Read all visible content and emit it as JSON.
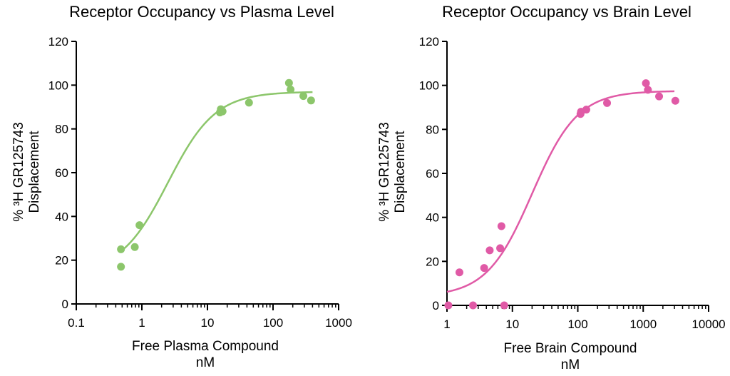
{
  "chart_data": [
    {
      "type": "scatter",
      "title": "Receptor Occupancy vs Plasma Level",
      "xlabel": [
        "Free Plasma Compound",
        "nM"
      ],
      "ylabel": [
        "% ³H GR125743",
        "Displacement"
      ],
      "xscale": "log",
      "xlim": [
        0.1,
        1000
      ],
      "ylim": [
        0,
        120
      ],
      "xticks": [
        0.1,
        1,
        10,
        100,
        1000
      ],
      "xtick_labels": [
        "0.1",
        "1",
        "10",
        "100",
        "1000"
      ],
      "yticks": [
        0,
        20,
        40,
        60,
        80,
        100,
        120
      ],
      "ytick_labels": [
        "0",
        "20",
        "40",
        "60",
        "80",
        "100",
        "120"
      ],
      "grid": false,
      "color": "#8cc66b",
      "series": [
        {
          "points": [
            [
              0.48,
              25
            ],
            [
              0.48,
              17
            ],
            [
              0.78,
              26
            ],
            [
              0.92,
              36
            ],
            [
              15.5,
              87.5
            ],
            [
              16,
              89
            ],
            [
              16.5,
              88
            ],
            [
              17,
              88
            ],
            [
              43,
              92
            ],
            [
              175,
              101
            ],
            [
              185,
              98
            ],
            [
              290,
              95
            ],
            [
              380,
              93
            ]
          ],
          "fit": {
            "bottom": 14,
            "top": 97,
            "ec50": 2.5,
            "hill": 1.2,
            "x_range": [
              0.48,
              400
            ]
          }
        }
      ]
    },
    {
      "type": "scatter",
      "title": "Receptor  Occupancy vs Brain Level",
      "xlabel": [
        "Free Brain Compound",
        "nM"
      ],
      "ylabel": [
        "% ³H GR125743",
        "Displacement"
      ],
      "xscale": "log",
      "xlim": [
        1,
        10000
      ],
      "ylim": [
        0,
        120
      ],
      "xticks": [
        1,
        10,
        100,
        1000,
        10000
      ],
      "xtick_labels": [
        "1",
        "10",
        "100",
        "1000",
        "10000"
      ],
      "yticks": [
        0,
        20,
        40,
        60,
        80,
        100,
        120
      ],
      "ytick_labels": [
        "0",
        "20",
        "40",
        "60",
        "80",
        "100",
        "120"
      ],
      "grid": false,
      "color": "#e05aa6",
      "series": [
        {
          "points": [
            [
              1.05,
              0
            ],
            [
              1.55,
              15
            ],
            [
              2.5,
              0
            ],
            [
              3.7,
              17
            ],
            [
              4.5,
              25
            ],
            [
              6.5,
              26
            ],
            [
              6.8,
              36
            ],
            [
              7.5,
              0
            ],
            [
              110,
              87
            ],
            [
              112,
              88
            ],
            [
              135,
              89
            ],
            [
              280,
              92
            ],
            [
              1100,
              101
            ],
            [
              1180,
              98
            ],
            [
              1750,
              95
            ],
            [
              3100,
              93
            ]
          ],
          "fit": {
            "bottom": 4,
            "top": 97.5,
            "ec50": 20,
            "hill": 1.25,
            "x_range": [
              1,
              3000
            ]
          }
        }
      ]
    }
  ]
}
